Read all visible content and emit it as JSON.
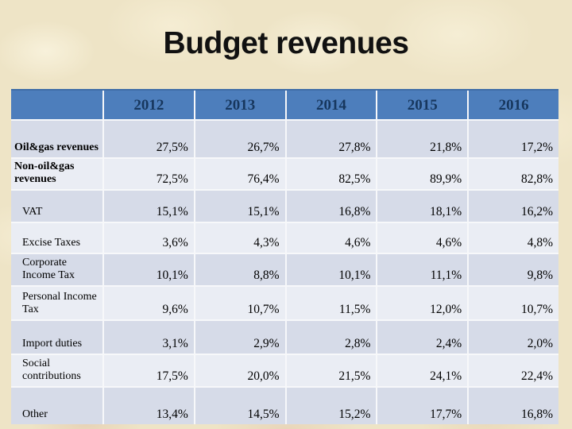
{
  "slide": {
    "title": "Budget revenues"
  },
  "colors": {
    "slide_bg": "#eee4c6",
    "title_text": "#111111",
    "header_bg": "#4d7ebc",
    "header_text": "#17375e",
    "band_dark": "#d6dbe8",
    "band_light": "#eaedf4"
  },
  "table": {
    "corner_label": "",
    "years": [
      "2012",
      "2013",
      "2014",
      "2015",
      "2016"
    ],
    "rows": [
      {
        "label": "Oil&gas revenues",
        "group": true,
        "values": [
          "27,5%",
          "26,7%",
          "27,8%",
          "21,8%",
          "17,2%"
        ]
      },
      {
        "label": "Non-oil&gas revenues",
        "group": true,
        "values": [
          "72,5%",
          "76,4%",
          "82,5%",
          "89,9%",
          "82,8%"
        ]
      },
      {
        "label": "VAT",
        "group": false,
        "values": [
          "15,1%",
          "15,1%",
          "16,8%",
          "18,1%",
          "16,2%"
        ]
      },
      {
        "label": "Excise Taxes",
        "group": false,
        "values": [
          "3,6%",
          "4,3%",
          "4,6%",
          "4,6%",
          "4,8%"
        ]
      },
      {
        "label": "Corporate Income Tax",
        "group": false,
        "values": [
          "10,1%",
          "8,8%",
          "10,1%",
          "11,1%",
          "9,8%"
        ]
      },
      {
        "label": "Personal Income Tax",
        "group": false,
        "values": [
          "9,6%",
          "10,7%",
          "11,5%",
          "12,0%",
          "10,7%"
        ]
      },
      {
        "label": "Import duties",
        "group": false,
        "values": [
          "3,1%",
          "2,9%",
          "2,8%",
          "2,4%",
          "2,0%"
        ]
      },
      {
        "label": "Social contributions",
        "group": false,
        "values": [
          "17,5%",
          "20,0%",
          "21,5%",
          "24,1%",
          "22,4%"
        ]
      },
      {
        "label": "Other",
        "group": false,
        "values": [
          "13,4%",
          "14,5%",
          "15,2%",
          "17,7%",
          "16,8%"
        ]
      }
    ]
  }
}
